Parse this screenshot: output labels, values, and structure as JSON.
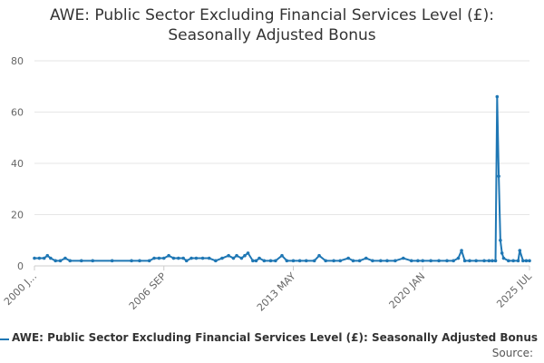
{
  "chart_data": {
    "type": "line",
    "title_lines": [
      "AWE: Public Sector Excluding Financial Services Level (£):",
      "Seasonally Adjusted Bonus"
    ],
    "xlabel": "",
    "ylabel": "",
    "ylim": [
      0,
      80
    ],
    "yticks": [
      0,
      20,
      40,
      60,
      80
    ],
    "x_range": [
      "2000 JAN",
      "2025 JUL"
    ],
    "xtick_labels": [
      {
        "label": "2000 J...",
        "date": "2000 JAN"
      },
      {
        "label": "2006 SEP",
        "date": "2006 SEP"
      },
      {
        "label": "2013 MAY",
        "date": "2013 MAY"
      },
      {
        "label": "2020 JAN",
        "date": "2020 JAN"
      },
      {
        "label": "2025 JUL",
        "date": "2025 JUL"
      }
    ],
    "grid": "horizontal",
    "legend_position": "bottom",
    "color": "#1f77b4",
    "series": [
      {
        "name": "AWE: Public Sector Excluding Financial Services Level (£): Seasonally Adjusted Bonus",
        "points": [
          [
            "2000 JAN",
            3
          ],
          [
            "2000 APR",
            3
          ],
          [
            "2000 JUL",
            3
          ],
          [
            "2000 SEP",
            4
          ],
          [
            "2000 NOV",
            3
          ],
          [
            "2001 FEB",
            2
          ],
          [
            "2001 MAY",
            2
          ],
          [
            "2001 AUG",
            3
          ],
          [
            "2001 NOV",
            2
          ],
          [
            "2002 JUN",
            2
          ],
          [
            "2003 JAN",
            2
          ],
          [
            "2004 JAN",
            2
          ],
          [
            "2005 JAN",
            2
          ],
          [
            "2005 JUN",
            2
          ],
          [
            "2005 DEC",
            2
          ],
          [
            "2006 MAR",
            3
          ],
          [
            "2006 JUN",
            3
          ],
          [
            "2006 SEP",
            3
          ],
          [
            "2006 DEC",
            4
          ],
          [
            "2007 MAR",
            3
          ],
          [
            "2007 JUN",
            3
          ],
          [
            "2007 SEP",
            3
          ],
          [
            "2007 NOV",
            2
          ],
          [
            "2008 FEB",
            3
          ],
          [
            "2008 MAY",
            3
          ],
          [
            "2008 SEP",
            3
          ],
          [
            "2009 JAN",
            3
          ],
          [
            "2009 MAY",
            2
          ],
          [
            "2009 SEP",
            3
          ],
          [
            "2010 JAN",
            4
          ],
          [
            "2010 APR",
            3
          ],
          [
            "2010 JUN",
            4
          ],
          [
            "2010 SEP",
            3
          ],
          [
            "2010 NOV",
            4
          ],
          [
            "2011 JAN",
            5
          ],
          [
            "2011 APR",
            2
          ],
          [
            "2011 JUN",
            2
          ],
          [
            "2011 AUG",
            3
          ],
          [
            "2011 NOV",
            2
          ],
          [
            "2012 MAR",
            2
          ],
          [
            "2012 JUN",
            2
          ],
          [
            "2012 OCT",
            4
          ],
          [
            "2013 JAN",
            2
          ],
          [
            "2013 MAY",
            2
          ],
          [
            "2013 SEP",
            2
          ],
          [
            "2014 JAN",
            2
          ],
          [
            "2014 JUN",
            2
          ],
          [
            "2014 SEP",
            4
          ],
          [
            "2015 JAN",
            2
          ],
          [
            "2015 JUN",
            2
          ],
          [
            "2015 OCT",
            2
          ],
          [
            "2016 MAR",
            3
          ],
          [
            "2016 JUN",
            2
          ],
          [
            "2016 OCT",
            2
          ],
          [
            "2017 FEB",
            3
          ],
          [
            "2017 JUN",
            2
          ],
          [
            "2017 NOV",
            2
          ],
          [
            "2018 MAR",
            2
          ],
          [
            "2018 AUG",
            2
          ],
          [
            "2019 JAN",
            3
          ],
          [
            "2019 JUN",
            2
          ],
          [
            "2019 OCT",
            2
          ],
          [
            "2020 JAN",
            2
          ],
          [
            "2020 JUN",
            2
          ],
          [
            "2020 NOV",
            2
          ],
          [
            "2021 APR",
            2
          ],
          [
            "2021 AUG",
            2
          ],
          [
            "2021 NOV",
            3
          ],
          [
            "2022 JAN",
            6
          ],
          [
            "2022 MAR",
            2
          ],
          [
            "2022 JUN",
            2
          ],
          [
            "2022 OCT",
            2
          ],
          [
            "2023 MAR",
            2
          ],
          [
            "2023 JUN",
            2
          ],
          [
            "2023 AUG",
            2
          ],
          [
            "2023 OCT",
            2
          ],
          [
            "2023 NOV",
            66
          ],
          [
            "2023 DEC",
            35
          ],
          [
            "2024 JAN",
            10
          ],
          [
            "2024 FEB",
            5
          ],
          [
            "2024 MAR",
            3
          ],
          [
            "2024 JUN",
            2
          ],
          [
            "2024 SEP",
            2
          ],
          [
            "2024 DEC",
            2
          ],
          [
            "2025 JAN",
            6
          ],
          [
            "2025 MAR",
            2
          ],
          [
            "2025 MAY",
            2
          ],
          [
            "2025 JUL",
            2
          ]
        ]
      }
    ]
  },
  "legend": {
    "label": "AWE: Public Sector Excluding Financial Services Level (£): Seasonally Adjusted Bonus"
  },
  "source": {
    "label": "Source:"
  }
}
